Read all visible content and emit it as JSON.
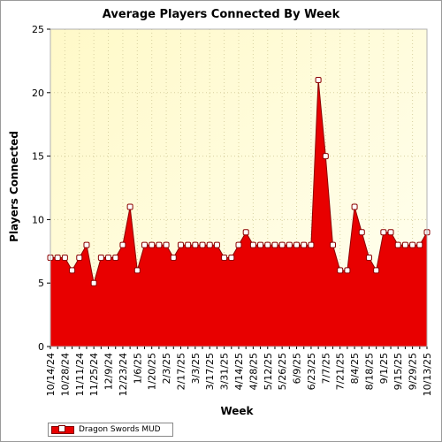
{
  "chart_data": {
    "type": "area",
    "title": "Average Players Connected By Week",
    "xlabel": "Week",
    "ylabel": "Players Connected",
    "ylim": [
      0,
      25
    ],
    "yticks": [
      0,
      5,
      10,
      15,
      20,
      25
    ],
    "grid": true,
    "legend_position": "bottom-left",
    "colors": {
      "fill": "#e80000",
      "line": "#8b0000",
      "marker_fill": "#ffffff",
      "plot_background": "#fffde0"
    },
    "x": [
      "10/14/24",
      "10/21/24",
      "10/28/24",
      "11/4/24",
      "11/11/24",
      "11/18/24",
      "11/25/24",
      "12/2/24",
      "12/9/24",
      "12/16/24",
      "12/23/24",
      "12/30/24",
      "1/6/25",
      "1/13/25",
      "1/20/25",
      "1/27/25",
      "2/3/25",
      "2/10/25",
      "2/17/25",
      "2/24/25",
      "3/3/25",
      "3/10/25",
      "3/17/25",
      "3/24/25",
      "3/31/25",
      "4/7/25",
      "4/14/25",
      "4/21/25",
      "4/28/25",
      "5/5/25",
      "5/12/25",
      "5/19/25",
      "5/26/25",
      "6/2/25",
      "6/9/25",
      "6/16/25",
      "6/23/25",
      "6/30/25",
      "7/7/25",
      "7/14/25",
      "7/21/25",
      "7/28/25",
      "8/4/25",
      "8/11/25",
      "8/18/25",
      "8/25/25",
      "9/1/25",
      "9/8/25",
      "9/15/25",
      "9/22/25",
      "9/29/25",
      "10/6/25",
      "10/13/25"
    ],
    "x_tick_labels": [
      "10/14/24",
      "10/28/24",
      "11/11/24",
      "11/25/24",
      "12/9/24",
      "12/23/24",
      "1/6/25",
      "1/20/25",
      "2/3/25",
      "2/17/25",
      "3/3/25",
      "3/17/25",
      "3/31/25",
      "4/14/25",
      "4/28/25",
      "5/12/25",
      "5/26/25",
      "6/9/25",
      "6/23/25",
      "7/7/25",
      "7/21/25",
      "8/4/25",
      "8/18/25",
      "9/1/25",
      "9/15/25",
      "9/29/25",
      "10/13/25"
    ],
    "series": [
      {
        "name": "Dragon Swords MUD",
        "values": [
          7,
          7,
          7,
          6,
          7,
          8,
          5,
          7,
          7,
          7,
          8,
          11,
          6,
          8,
          8,
          8,
          8,
          7,
          8,
          8,
          8,
          8,
          8,
          8,
          7,
          7,
          8,
          9,
          8,
          8,
          8,
          8,
          8,
          8,
          8,
          8,
          8,
          21,
          15,
          8,
          6,
          6,
          11,
          9,
          7,
          6,
          9,
          9,
          8,
          8,
          8,
          8,
          9
        ]
      }
    ]
  }
}
